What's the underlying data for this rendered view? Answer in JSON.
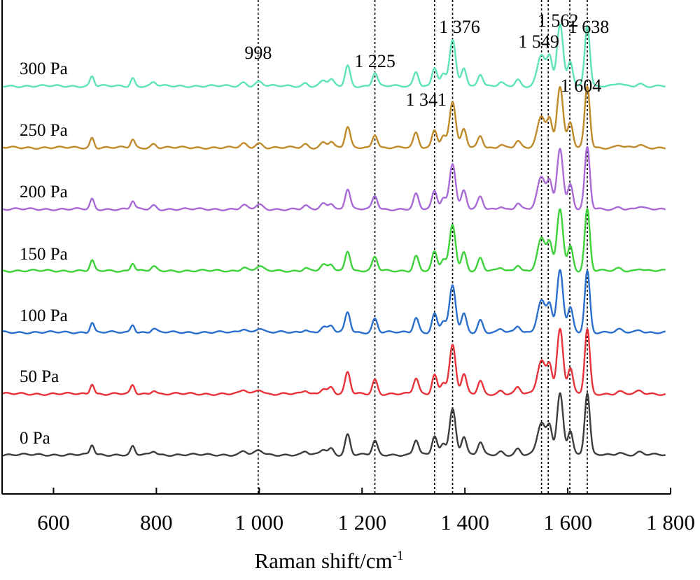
{
  "chart_data": {
    "type": "line",
    "xlabel": "Raman shift/cm",
    "xlabel_sup": "-1",
    "xlim": [
      500,
      1800
    ],
    "xticks": [
      {
        "value": 600,
        "label": "600"
      },
      {
        "value": 800,
        "label": "800"
      },
      {
        "value": 1000,
        "label": "1 000"
      },
      {
        "value": 1200,
        "label": "1 200"
      },
      {
        "value": 1400,
        "label": "1 400"
      },
      {
        "value": 1600,
        "label": "1 600"
      },
      {
        "value": 1800,
        "label": "1 800"
      }
    ],
    "y_axis_ticks": false,
    "reference_lines": [
      998,
      1225,
      1341,
      1376,
      1549,
      1562,
      1604,
      1638
    ],
    "peak_labels": [
      {
        "value": 998,
        "label": "998"
      },
      {
        "value": 1225,
        "label": "1 225"
      },
      {
        "value": 1341,
        "label": "1 341"
      },
      {
        "value": 1376,
        "label": "1 376"
      },
      {
        "value": 1549,
        "label": "1 549"
      },
      {
        "value": 1562,
        "label": "1 562"
      },
      {
        "value": 1604,
        "label": "1 604"
      },
      {
        "value": 1638,
        "label": "1 638"
      }
    ],
    "peaks": [
      {
        "x": 675,
        "h": 0.16,
        "w": 4
      },
      {
        "x": 754,
        "h": 0.13,
        "w": 4
      },
      {
        "x": 795,
        "h": 0.06,
        "w": 5
      },
      {
        "x": 970,
        "h": 0.06,
        "w": 6
      },
      {
        "x": 1000,
        "h": 0.07,
        "w": 7
      },
      {
        "x": 1090,
        "h": 0.05,
        "w": 5
      },
      {
        "x": 1125,
        "h": 0.09,
        "w": 6
      },
      {
        "x": 1140,
        "h": 0.1,
        "w": 5
      },
      {
        "x": 1172,
        "h": 0.33,
        "w": 5
      },
      {
        "x": 1225,
        "h": 0.22,
        "w": 5
      },
      {
        "x": 1305,
        "h": 0.24,
        "w": 5
      },
      {
        "x": 1341,
        "h": 0.3,
        "w": 5
      },
      {
        "x": 1358,
        "h": 0.18,
        "w": 5
      },
      {
        "x": 1376,
        "h": 0.75,
        "w": 6
      },
      {
        "x": 1398,
        "h": 0.3,
        "w": 5
      },
      {
        "x": 1430,
        "h": 0.2,
        "w": 5
      },
      {
        "x": 1470,
        "h": 0.05,
        "w": 5
      },
      {
        "x": 1503,
        "h": 0.1,
        "w": 5
      },
      {
        "x": 1549,
        "h": 0.52,
        "w": 8
      },
      {
        "x": 1565,
        "h": 0.42,
        "w": 5
      },
      {
        "x": 1585,
        "h": 1.0,
        "w": 6
      },
      {
        "x": 1605,
        "h": 0.4,
        "w": 5
      },
      {
        "x": 1638,
        "h": 1.0,
        "w": 5
      },
      {
        "x": 1700,
        "h": 0.04,
        "w": 6
      },
      {
        "x": 1740,
        "h": 0.04,
        "w": 6
      }
    ],
    "series": [
      {
        "name": "0 Pa",
        "color": "#3d3d3d",
        "scale": 1.0
      },
      {
        "name": "50 Pa",
        "color": "#e8323a",
        "scale": 1.05
      },
      {
        "name": "100 Pa",
        "color": "#2a6fcb",
        "scale": 1.0
      },
      {
        "name": "150 Pa",
        "color": "#3dd13a",
        "scale": 1.0
      },
      {
        "name": "200 Pa",
        "color": "#a86ad6",
        "scale": 1.0
      },
      {
        "name": "250 Pa",
        "color": "#c08a2a",
        "scale": 1.0
      },
      {
        "name": "300 Pa",
        "color": "#5fe3b9",
        "scale": 1.0
      }
    ]
  }
}
